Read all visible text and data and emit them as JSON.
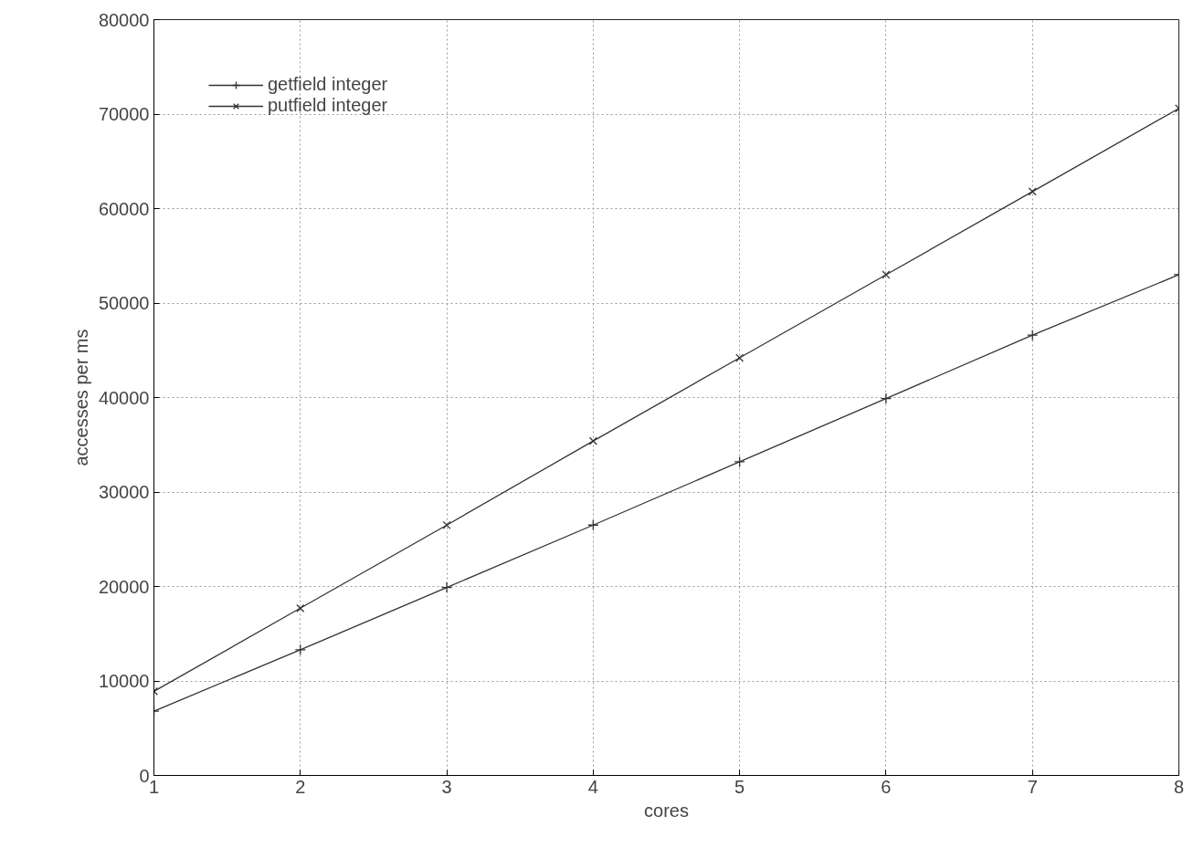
{
  "chart_data": {
    "type": "line",
    "xlabel": "cores",
    "ylabel": "accesses per ms",
    "x": [
      1,
      2,
      3,
      4,
      5,
      6,
      7,
      8
    ],
    "series": [
      {
        "name": "getfield integer",
        "color": "#333333",
        "marker": "cross",
        "values": [
          6800,
          13300,
          19900,
          26500,
          33200,
          39900,
          46600,
          53000
        ]
      },
      {
        "name": "putfield integer",
        "color": "#333333",
        "marker": "x",
        "values": [
          8900,
          17700,
          26500,
          35400,
          44200,
          53000,
          61800,
          70600
        ]
      }
    ],
    "xlim": [
      1,
      8
    ],
    "xticks": [
      1,
      2,
      3,
      4,
      5,
      6,
      7,
      8
    ],
    "ylim": [
      0,
      80000
    ],
    "yticks": [
      0,
      10000,
      20000,
      30000,
      40000,
      50000,
      60000,
      70000,
      80000
    ],
    "grid": true,
    "legend": "top left",
    "line_style": "solid"
  }
}
